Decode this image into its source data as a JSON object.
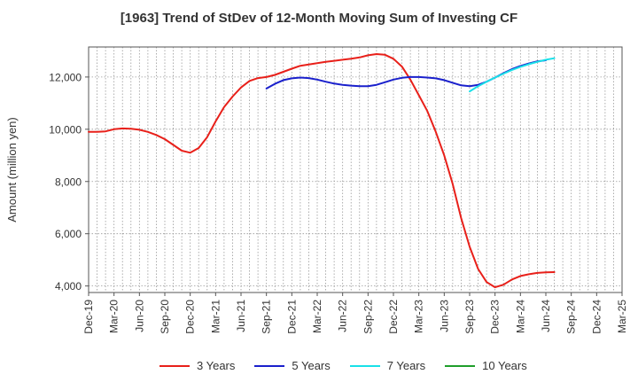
{
  "chart_data": {
    "type": "line",
    "title": "[1963]  Trend of StDev of 12-Month Moving Sum of Investing CF",
    "xlabel": "",
    "ylabel": "Amount (million yen)",
    "x_tick_labels": [
      "Dec-19",
      "Mar-20",
      "Jun-20",
      "Sep-20",
      "Dec-20",
      "Mar-21",
      "Jun-21",
      "Sep-21",
      "Dec-21",
      "Mar-22",
      "Jun-22",
      "Sep-22",
      "Dec-22",
      "Mar-23",
      "Jun-23",
      "Sep-23",
      "Dec-23",
      "Mar-24",
      "Jun-24",
      "Sep-24",
      "Dec-24",
      "Mar-25"
    ],
    "y_tick_labels": [
      "4,000",
      "6,000",
      "8,000",
      "10,000",
      "12,000"
    ],
    "y_ticks": [
      4000,
      6000,
      8000,
      10000,
      12000
    ],
    "ylim": [
      3750,
      13150
    ],
    "grid": true,
    "legend_position": "bottom",
    "series": [
      {
        "name": "3 Years",
        "color": "#e8201a",
        "values": [
          9900,
          9900,
          9920,
          10000,
          10030,
          10020,
          9980,
          9900,
          9780,
          9620,
          9400,
          9180,
          9100,
          9280,
          9700,
          10300,
          10850,
          11250,
          11600,
          11850,
          11960,
          12000,
          12080,
          12200,
          12320,
          12430,
          12480,
          12530,
          12580,
          12620,
          12660,
          12700,
          12750,
          12830,
          12880,
          12850,
          12700,
          12400,
          11900,
          11300,
          10700,
          9900,
          9000,
          7900,
          6600,
          5500,
          4650,
          4150,
          3950,
          4050,
          4250,
          4380,
          4450,
          4500,
          4520,
          4530
        ]
      },
      {
        "name": "5 Years",
        "color": "#1a20cc",
        "offset": 21,
        "values": [
          11560,
          11740,
          11880,
          11950,
          11980,
          11960,
          11900,
          11820,
          11750,
          11700,
          11670,
          11650,
          11650,
          11700,
          11800,
          11900,
          11970,
          12000,
          12000,
          11980,
          11950,
          11880,
          11780,
          11680,
          11650,
          11700,
          11820,
          11980,
          12150,
          12300,
          12420,
          12520,
          12600,
          12640
        ]
      },
      {
        "name": "7 Years",
        "color": "#19e0e8",
        "offset": 45,
        "values": [
          11450,
          11650,
          11820,
          11980,
          12130,
          12270,
          12390,
          12490,
          12580,
          12660,
          12720
        ]
      },
      {
        "name": "10 Years",
        "color": "#1f9e2a",
        "offset": 0,
        "values": []
      }
    ]
  }
}
